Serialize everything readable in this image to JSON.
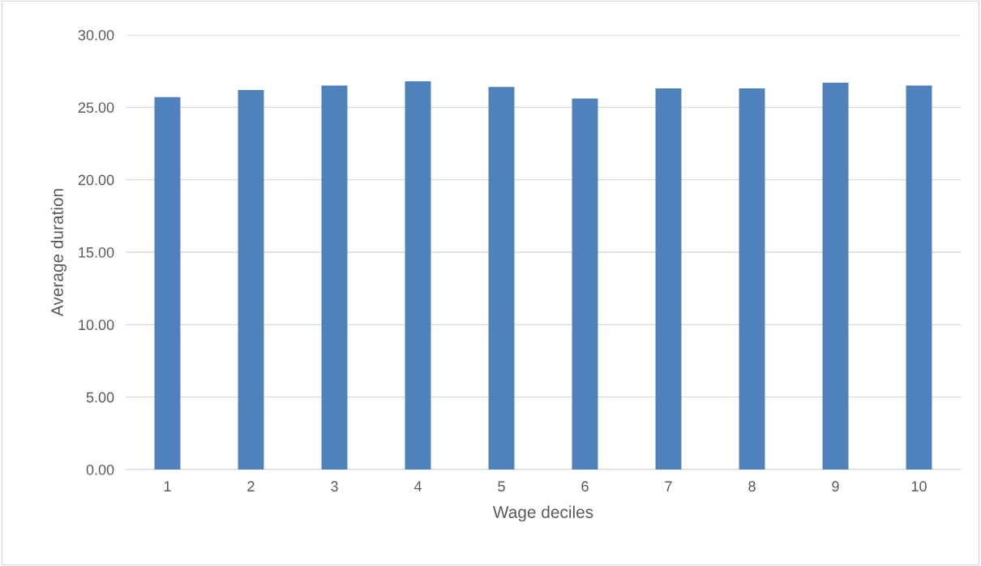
{
  "chart_data": {
    "type": "bar",
    "xlabel": "Wage deciles",
    "ylabel": "Average duration",
    "categories": [
      "1",
      "2",
      "3",
      "4",
      "5",
      "6",
      "7",
      "8",
      "9",
      "10"
    ],
    "values": [
      25.7,
      26.2,
      26.5,
      26.8,
      26.4,
      25.6,
      26.3,
      26.3,
      26.7,
      26.5
    ],
    "color": "#4f81bd",
    "ylim": [
      0,
      30
    ],
    "yticks": [
      {
        "value": 0,
        "label": "0.00"
      },
      {
        "value": 5,
        "label": "5.00"
      },
      {
        "value": 10,
        "label": "10.00"
      },
      {
        "value": 15,
        "label": "15.00"
      },
      {
        "value": 20,
        "label": "20.00"
      },
      {
        "value": 25,
        "label": "25.00"
      },
      {
        "value": 30,
        "label": "30.00"
      }
    ],
    "grid": "y",
    "legend": false
  }
}
